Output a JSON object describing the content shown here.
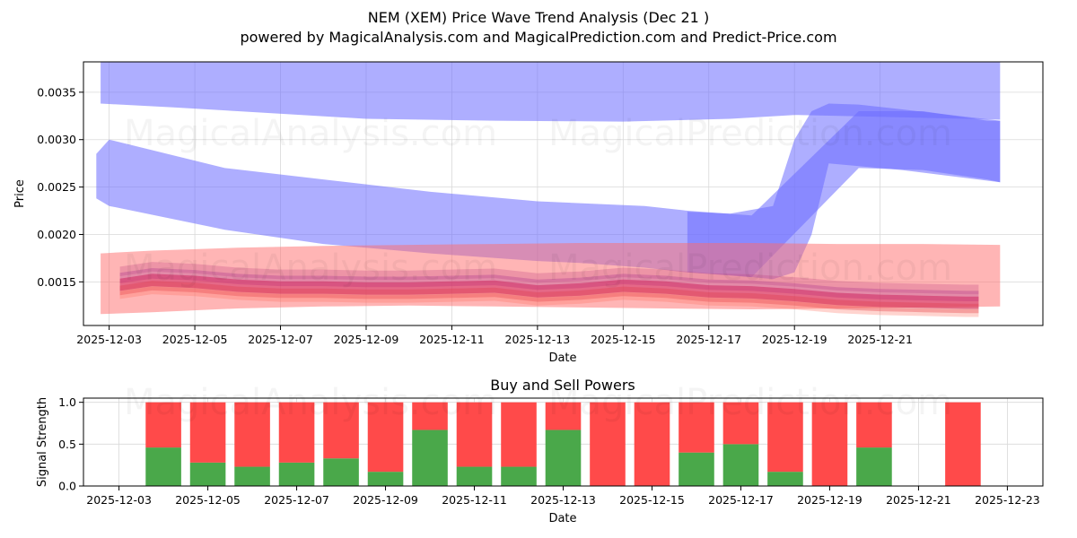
{
  "title": "NEM (XEM) Price Wave Trend Analysis (Dec 21 )",
  "subtitle": "powered by MagicalAnalysis.com and MagicalPrediction.com and Predict-Price.com",
  "watermarks": [
    "MagicalAnalysis.com",
    "MagicalPrediction.com"
  ],
  "colors": {
    "blue": "#6b6bff",
    "red": "#ff6b6b",
    "buy": "#4aa84a",
    "sell": "#ff4a4a",
    "grid": "#d9d9d9"
  },
  "chart_data": [
    {
      "type": "area",
      "name": "price-wave",
      "xlabel": "Date",
      "ylabel": "Price",
      "xlim": [
        -0.6,
        21.8
      ],
      "ylim": [
        0.00104,
        0.00382
      ],
      "x_tick_labels": [
        "2025-12-03",
        "2025-12-05",
        "2025-12-07",
        "2025-12-09",
        "2025-12-11",
        "2025-12-13",
        "2025-12-15",
        "2025-12-17",
        "2025-12-19",
        "2025-12-21"
      ],
      "y_tick_labels": [
        "0.0015",
        "0.0020",
        "0.0025",
        "0.0030",
        "0.0035"
      ],
      "blue_bands": [
        {
          "x": [
            -0.2,
            1.5,
            3.0,
            6.0,
            9.0,
            12.0,
            14.5,
            16.0,
            18.0,
            20.0,
            20.8
          ],
          "upper": [
            0.00382,
            0.00382,
            0.00382,
            0.00382,
            0.00382,
            0.00382,
            0.00382,
            0.00382,
            0.00382,
            0.00382,
            0.00382
          ],
          "lower": [
            0.00338,
            0.00334,
            0.0033,
            0.00322,
            0.0032,
            0.00319,
            0.00322,
            0.00326,
            0.00324,
            0.00322,
            0.00321
          ]
        },
        {
          "x": [
            -0.3,
            0.0,
            2.7,
            5.0,
            7.5,
            10.0,
            11.0,
            12.5,
            13.5,
            15.0,
            17.5,
            19.0,
            20.5,
            20.8
          ],
          "upper": [
            0.00285,
            0.003,
            0.0027,
            0.00258,
            0.00245,
            0.00235,
            0.00233,
            0.0023,
            0.00225,
            0.0022,
            0.0033,
            0.0033,
            0.0032,
            0.0032
          ],
          "lower": [
            0.00238,
            0.0023,
            0.00205,
            0.0019,
            0.0018,
            0.00172,
            0.0017,
            0.00165,
            0.0016,
            0.00155,
            0.0027,
            0.00268,
            0.00258,
            0.00255
          ]
        },
        {
          "x": [
            13.5,
            14.5,
            15.5,
            16.0,
            16.4,
            16.8,
            17.5,
            18.5,
            20.8
          ],
          "upper": [
            0.00224,
            0.00222,
            0.0023,
            0.003,
            0.0033,
            0.00338,
            0.00337,
            0.00332,
            0.0032
          ],
          "lower": [
            0.0016,
            0.00157,
            0.00153,
            0.0016,
            0.002,
            0.00275,
            0.00272,
            0.00268,
            0.00255
          ]
        }
      ],
      "red_band": {
        "x": [
          -0.2,
          1.0,
          3.0,
          5.0,
          7.0,
          9.0,
          11.0,
          13.0,
          15.0,
          17.0,
          19.0,
          20.8
        ],
        "upper": [
          0.0018,
          0.00183,
          0.00186,
          0.00188,
          0.00189,
          0.0019,
          0.00191,
          0.00191,
          0.00191,
          0.0019,
          0.0019,
          0.00189
        ],
        "lower": [
          0.00116,
          0.00118,
          0.00122,
          0.00124,
          0.00125,
          0.00124,
          0.00123,
          0.00122,
          0.00121,
          0.00122,
          0.00123,
          0.00124
        ]
      },
      "wave_center": {
        "x": [
          0.25,
          1.0,
          2.0,
          3.0,
          4.0,
          5.0,
          6.0,
          7.0,
          8.0,
          9.0,
          10.0,
          11.0,
          12.0,
          13.0,
          14.0,
          15.0,
          16.0,
          17.0,
          18.0,
          19.0,
          20.0,
          20.3
        ],
        "y": [
          0.00147,
          0.00152,
          0.0015,
          0.00146,
          0.00144,
          0.00144,
          0.00143,
          0.00143,
          0.00144,
          0.00145,
          0.0014,
          0.00142,
          0.00146,
          0.00144,
          0.0014,
          0.00139,
          0.00136,
          0.00132,
          0.0013,
          0.00129,
          0.00128,
          0.00128
        ]
      }
    },
    {
      "type": "bar",
      "name": "buy-sell-powers",
      "title": "Buy and Sell Powers",
      "xlabel": "Date",
      "ylabel": "Signal Strength",
      "xlim": [
        -0.8,
        20.8
      ],
      "ylim": [
        0.0,
        1.05
      ],
      "y_tick_labels": [
        "0.0",
        "0.5",
        "1.0"
      ],
      "x_tick_labels": [
        "2025-12-03",
        "2025-12-05",
        "2025-12-07",
        "2025-12-09",
        "2025-12-11",
        "2025-12-13",
        "2025-12-15",
        "2025-12-17",
        "2025-12-19",
        "2025-12-21",
        "2025-12-23"
      ],
      "days": [
        1,
        2,
        3,
        4,
        5,
        6,
        7,
        8,
        9,
        10,
        11,
        12,
        13,
        14,
        15,
        16,
        17,
        19
      ],
      "buy": [
        0.46,
        0.28,
        0.23,
        0.28,
        0.33,
        0.17,
        0.67,
        0.23,
        0.23,
        0.67,
        0.0,
        0.0,
        0.4,
        0.5,
        0.17,
        0.0,
        0.46,
        0.0
      ],
      "sell": [
        0.54,
        0.72,
        0.77,
        0.72,
        0.67,
        0.83,
        0.33,
        0.77,
        0.77,
        0.33,
        1.0,
        1.0,
        0.6,
        0.5,
        0.83,
        1.0,
        0.54,
        1.0
      ]
    }
  ]
}
